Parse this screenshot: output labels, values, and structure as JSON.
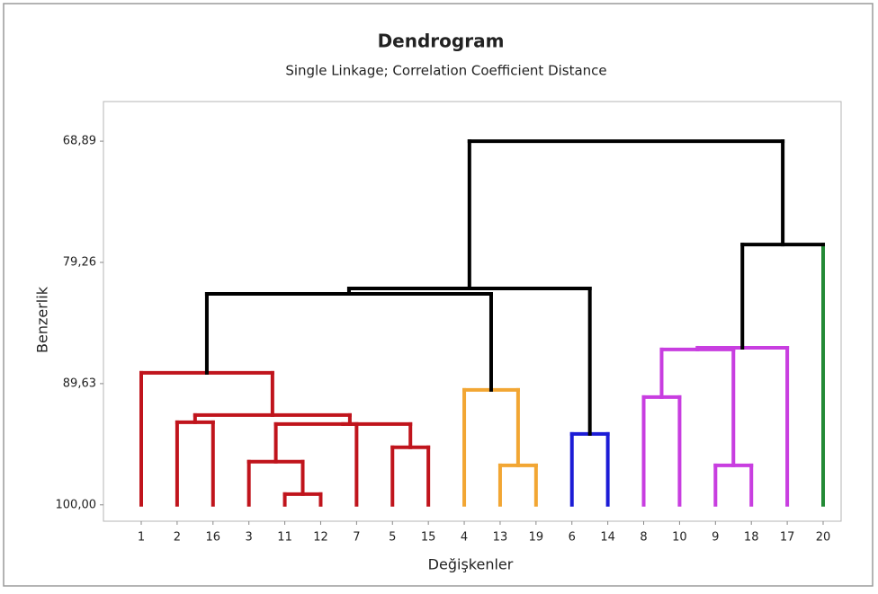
{
  "chart_data": {
    "type": "dendrogram",
    "title": "Dendrogram",
    "subtitle": "Single Linkage; Correlation Coefficient Distance",
    "x_label": "Değişkenler",
    "y_label": "Benzerlik",
    "categories": [
      "1",
      "2",
      "16",
      "3",
      "11",
      "12",
      "7",
      "5",
      "15",
      "4",
      "13",
      "19",
      "6",
      "14",
      "8",
      "10",
      "9",
      "18",
      "17",
      "20"
    ],
    "ylim": [
      101.4,
      65.5
    ],
    "yticks": [
      {
        "value": 100,
        "label": "100,00"
      },
      {
        "value": 89.63,
        "label": "89,63"
      },
      {
        "value": 79.26,
        "label": "79,26"
      },
      {
        "value": 68.89,
        "label": "68,89"
      }
    ],
    "merges": [
      {
        "children": [
          4,
          5
        ],
        "height": 99.08,
        "color": "#c0141c"
      },
      {
        "children": [
          3,
          20
        ],
        "height": 96.31,
        "color": "#c0141c"
      },
      {
        "children": [
          7,
          8
        ],
        "height": 95.08,
        "color": "#c0141c"
      },
      {
        "children": [
          1,
          2
        ],
        "height": 92.93,
        "color": "#c0141c"
      },
      {
        "children": [
          21,
          22
        ],
        "height": 93.09,
        "color": "#c0141c"
      },
      {
        "children": [
          6,
          24
        ],
        "height": 93.09,
        "color": "#c0141c"
      },
      {
        "children": [
          23,
          25
        ],
        "height": 92.32,
        "color": "#c0141c"
      },
      {
        "children": [
          0,
          26
        ],
        "height": 88.71,
        "color": "#c0141c"
      },
      {
        "children": [
          10,
          11
        ],
        "height": 96.62,
        "color": "#f2a633"
      },
      {
        "children": [
          9,
          28
        ],
        "height": 90.17,
        "color": "#f2a633"
      },
      {
        "children": [
          27,
          29
        ],
        "height": 81.95,
        "color": "#000000"
      },
      {
        "children": [
          12,
          13
        ],
        "height": 93.93,
        "color": "#1c1cd6"
      },
      {
        "children": [
          30,
          31
        ],
        "height": 81.49,
        "color": "#000000"
      },
      {
        "children": [
          14,
          15
        ],
        "height": 90.78,
        "color": "#c83ee0"
      },
      {
        "children": [
          16,
          17
        ],
        "height": 96.62,
        "color": "#c83ee0"
      },
      {
        "children": [
          33,
          34
        ],
        "height": 86.71,
        "color": "#c83ee0"
      },
      {
        "children": [
          35,
          18
        ],
        "height": 86.56,
        "color": "#c83ee0"
      },
      {
        "children": [
          36,
          19
        ],
        "height": 77.73,
        "color": "#000000",
        "right_color": "#238a35"
      },
      {
        "children": [
          32,
          37
        ],
        "height": 68.89,
        "color": "#000000"
      }
    ]
  }
}
